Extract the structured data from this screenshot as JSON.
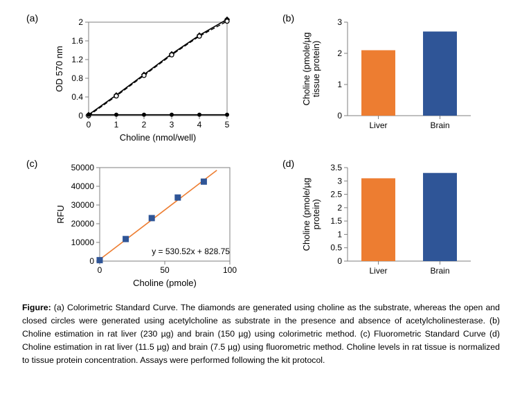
{
  "panel_a": {
    "label": "(a)",
    "type": "line-scatter",
    "xlabel": "Choline  (nmol/well)",
    "ylabel": "OD 570 nm",
    "xlim": [
      0,
      5
    ],
    "ylim": [
      0,
      2
    ],
    "xticks": [
      0,
      1,
      2,
      3,
      4,
      5
    ],
    "yticks": [
      0,
      0.4,
      0.8,
      1.2,
      1.6,
      2
    ],
    "label_fontsize": 13,
    "tick_fontsize": 12,
    "axis_color": "#7f7f7f",
    "background_color": "#ffffff",
    "series": [
      {
        "name": "diamonds",
        "marker": "diamond",
        "x": [
          0,
          1,
          2,
          3,
          4,
          5
        ],
        "y": [
          0.02,
          0.44,
          0.88,
          1.32,
          1.72,
          2.06
        ],
        "marker_fill": "#000000",
        "marker_size": 7,
        "line_color": "#000000",
        "line_width": 1.6
      },
      {
        "name": "open-circles",
        "marker": "circle-open",
        "x": [
          0,
          1,
          2,
          3,
          4,
          5
        ],
        "y": [
          0.0,
          0.42,
          0.86,
          1.3,
          1.7,
          2.02
        ],
        "marker_stroke": "#000000",
        "marker_fill": "#ffffff",
        "marker_size": 6,
        "line_color": "#000000",
        "line_dash": "6 3",
        "line_width": 1.4
      },
      {
        "name": "closed-circles",
        "marker": "circle",
        "x": [
          0,
          1,
          2,
          3,
          4,
          5
        ],
        "y": [
          0.02,
          0.02,
          0.02,
          0.02,
          0.02,
          0.02
        ],
        "marker_fill": "#000000",
        "marker_size": 6,
        "line_color": "#000000",
        "line_width": 1.6
      }
    ]
  },
  "panel_b": {
    "label": "(b)",
    "type": "bar",
    "ylabel": "Choline (pmole/µg\ntissue protein)",
    "categories": [
      "Liver",
      "Brain"
    ],
    "values": [
      2.1,
      2.7
    ],
    "ylim": [
      0,
      3
    ],
    "yticks": [
      0,
      1,
      2,
      3
    ],
    "bar_colors": [
      "#ed7d31",
      "#2f5597"
    ],
    "bar_width": 0.55,
    "label_fontsize": 13,
    "tick_fontsize": 12,
    "axis_color": "#7f7f7f",
    "background_color": "#ffffff"
  },
  "panel_c": {
    "label": "(c)",
    "type": "line-scatter",
    "xlabel": "Choline (pmole)",
    "ylabel": "RFU",
    "xlim": [
      0,
      100
    ],
    "ylim": [
      0,
      50000
    ],
    "xticks": [
      0,
      50,
      100
    ],
    "yticks": [
      0,
      10000,
      20000,
      30000,
      40000,
      50000
    ],
    "label_fontsize": 13,
    "tick_fontsize": 12,
    "axis_color": "#7f7f7f",
    "background_color": "#ffffff",
    "equation_text": "y = 530.52x + 828.75",
    "equation_fontsize": 12,
    "series": [
      {
        "name": "squares",
        "marker": "square",
        "x": [
          0,
          20,
          40,
          60,
          80
        ],
        "y": [
          500,
          11800,
          23000,
          34000,
          42500
        ],
        "marker_fill": "#2f5597",
        "marker_size": 9,
        "line_color": "#ed7d31",
        "line_width": 1.6,
        "trend_x": [
          0,
          90
        ],
        "trend_y": [
          828.75,
          48575.55
        ]
      }
    ]
  },
  "panel_d": {
    "label": "(d)",
    "type": "bar",
    "ylabel": "Choline (pmole/µg\nprotein)",
    "categories": [
      "Liver",
      "Brain"
    ],
    "values": [
      3.1,
      3.3
    ],
    "ylim": [
      0,
      3.5
    ],
    "yticks": [
      0,
      0.5,
      1,
      1.5,
      2,
      2.5,
      3,
      3.5
    ],
    "bar_colors": [
      "#ed7d31",
      "#2f5597"
    ],
    "bar_width": 0.55,
    "label_fontsize": 13,
    "tick_fontsize": 12,
    "axis_color": "#7f7f7f",
    "background_color": "#ffffff"
  },
  "caption": {
    "prefix": "Figure:",
    "text": " (a) Colorimetric Standard Curve. The diamonds are generated using choline as the substrate, whereas the open and closed circles were generated using acetylcholine as substrate in the presence and absence of acetylcholinesterase. (b) Choline estimation in rat liver (230 µg) and brain (150 µg) using colorimetric method. (c) Fluorometric Standard Curve (d) Choline estimation in rat liver (11.5 µg) and brain (7.5 µg) using fluorometric method. Choline levels in rat tissue is normalized to tissue protein concentration. Assays were performed following the kit protocol."
  }
}
